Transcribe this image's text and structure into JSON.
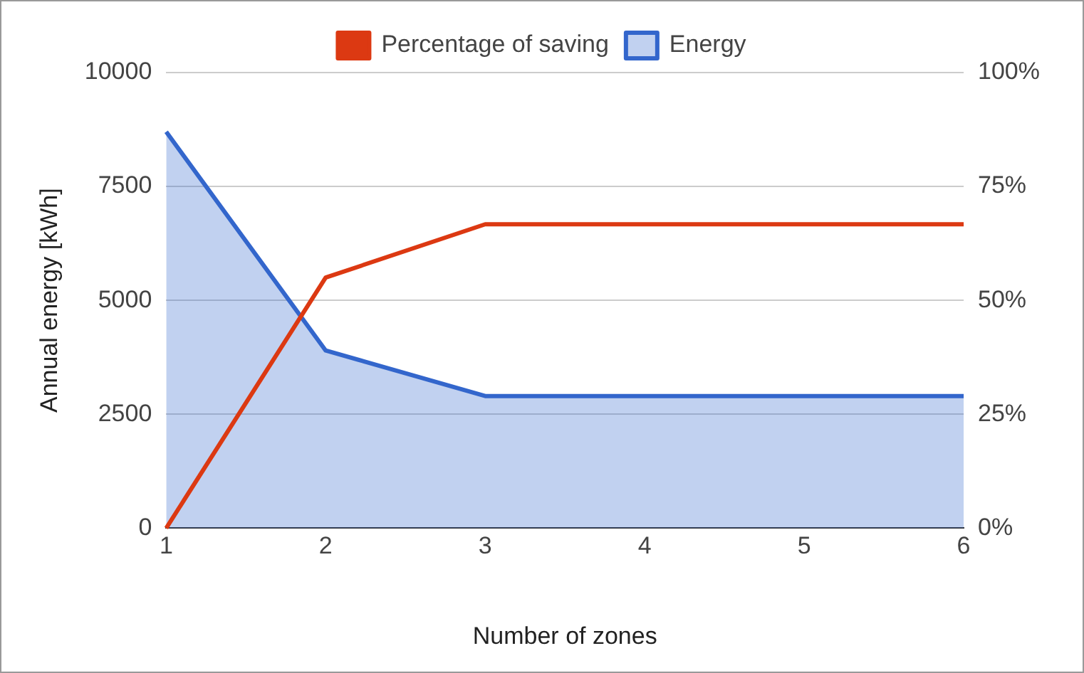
{
  "chart_data": {
    "type": "line",
    "xlabel": "Number of zones",
    "ylabel": "Annual energy [kWh]",
    "x": [
      1,
      2,
      3,
      4,
      5,
      6
    ],
    "xlim": [
      1,
      6
    ],
    "xticks": [
      1,
      2,
      3,
      4,
      5,
      6
    ],
    "ylim": [
      0,
      10000
    ],
    "yticks": [
      0,
      2500,
      5000,
      7500,
      10000
    ],
    "y2lim": [
      0,
      100
    ],
    "y2ticks": [
      {
        "value": 0,
        "label": "0%"
      },
      {
        "value": 25,
        "label": "25%"
      },
      {
        "value": 50,
        "label": "50%"
      },
      {
        "value": 75,
        "label": "75%"
      },
      {
        "value": 100,
        "label": "100%"
      }
    ],
    "series": [
      {
        "name": "Energy",
        "type": "area",
        "color": "#3366cc",
        "values": [
          8700,
          3900,
          2900,
          2900,
          2900,
          2900
        ]
      },
      {
        "name": "Percentage of saving",
        "type": "line",
        "axis": "y2",
        "color": "#dc3912",
        "values": [
          0,
          55,
          66.7,
          66.7,
          66.7,
          66.7
        ]
      }
    ],
    "grid": "y",
    "legend": "top",
    "marker": "none"
  }
}
